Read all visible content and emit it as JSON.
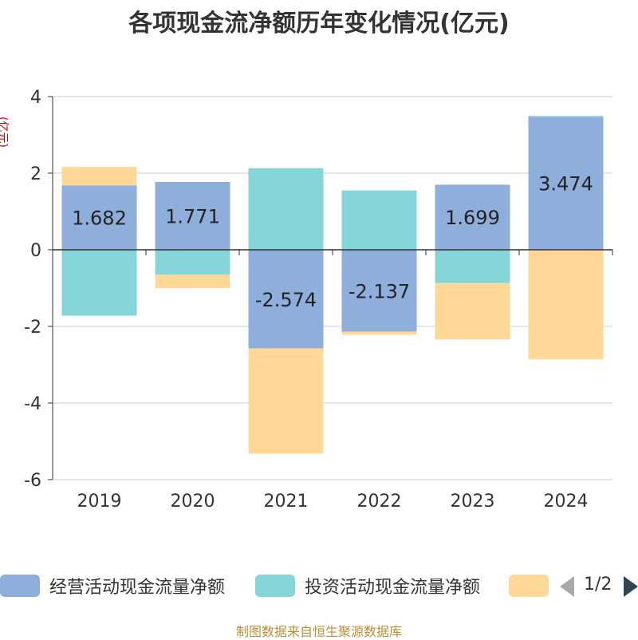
{
  "chart_data": {
    "type": "bar",
    "stacked": true,
    "title": "各项现金流净额历年变化情况(亿元)",
    "ylabel": "(亿元)",
    "xlabel": "",
    "ylim": [
      -6,
      4
    ],
    "yticks": [
      4,
      2,
      0,
      -2,
      -4,
      -6
    ],
    "categories": [
      "2019",
      "2020",
      "2021",
      "2022",
      "2023",
      "2024"
    ],
    "series": [
      {
        "name": "经营活动现金流量净额",
        "color": "#8eaedb",
        "values": [
          1.682,
          1.771,
          -2.574,
          -2.137,
          1.699,
          3.474
        ],
        "labels": [
          "1.682",
          "1.771",
          "-2.574",
          "-2.137",
          "1.699",
          "3.474"
        ]
      },
      {
        "name": "投资活动现金流量净额",
        "color": "#84d5d8",
        "values": [
          -1.72,
          -0.65,
          2.13,
          1.55,
          -0.87,
          0.02
        ]
      },
      {
        "name": "",
        "color": "#ffd898",
        "values": [
          0.48,
          -0.35,
          -2.75,
          -0.08,
          -1.47,
          -2.86
        ]
      }
    ]
  },
  "legend": {
    "pager": "1/2"
  },
  "footer": {
    "source": "制图数据来自恒生聚源数据库"
  }
}
